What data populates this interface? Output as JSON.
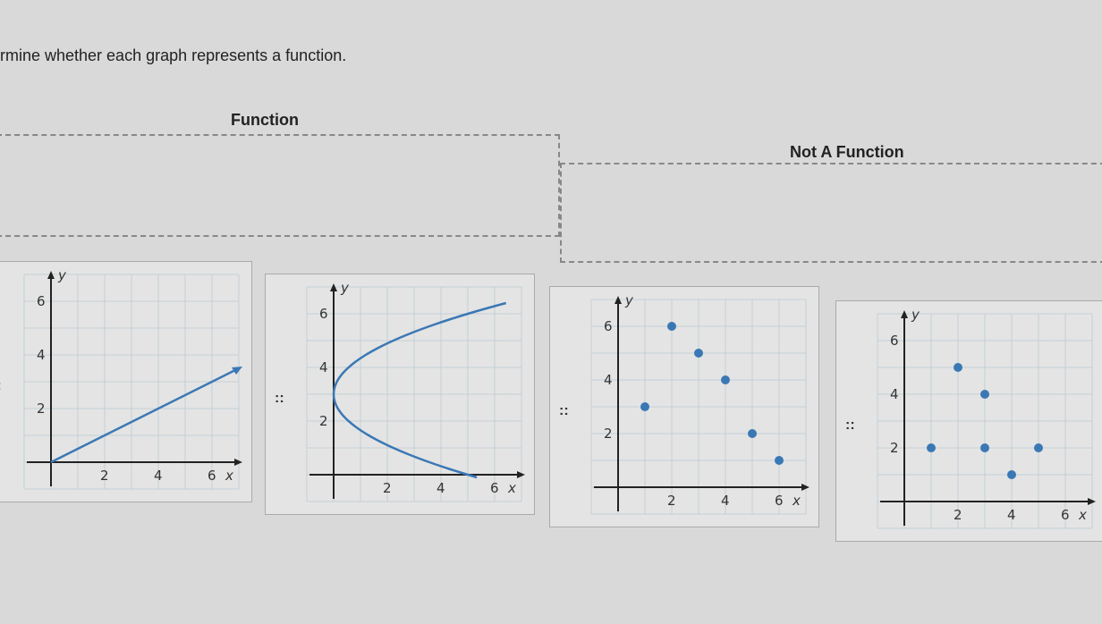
{
  "instructions": "rmine whether each graph represents a function.",
  "zones": [
    {
      "label": "Function"
    },
    {
      "label": "Not A Function"
    }
  ],
  "handle_icon": "::",
  "colors": {
    "series": "#3a78b5",
    "grid": "#c4cfd6",
    "axis": "#222"
  },
  "chart_data": [
    {
      "type": "line",
      "xlabel": "x",
      "ylabel": "y",
      "xticks": [
        "2",
        "4",
        "6"
      ],
      "yticks": [
        "2",
        "4",
        "6"
      ],
      "xlim": [
        -1,
        7
      ],
      "ylim": [
        -1,
        7
      ],
      "grid": true,
      "line": [
        [
          0,
          0
        ],
        [
          7,
          3.5
        ]
      ]
    },
    {
      "type": "line",
      "xlabel": "x",
      "ylabel": "y",
      "xticks": [
        "2",
        "4",
        "6"
      ],
      "yticks": [
        "2",
        "4",
        "6"
      ],
      "xlim": [
        -1,
        7
      ],
      "ylim": [
        -1,
        7
      ],
      "grid": true,
      "relation": "sideways parabola, vertex (0,3), opening right"
    },
    {
      "type": "scatter",
      "xlabel": "x",
      "ylabel": "y",
      "xticks": [
        "2",
        "4",
        "6"
      ],
      "yticks": [
        "2",
        "4",
        "6"
      ],
      "xlim": [
        -1,
        7
      ],
      "ylim": [
        -1,
        7
      ],
      "grid": true,
      "points": [
        [
          1,
          3
        ],
        [
          2,
          6
        ],
        [
          3,
          5
        ],
        [
          4,
          4
        ],
        [
          5,
          2
        ],
        [
          6,
          1
        ]
      ]
    },
    {
      "type": "scatter",
      "xlabel": "x",
      "ylabel": "y",
      "xticks": [
        "2",
        "4",
        "6"
      ],
      "yticks": [
        "2",
        "4",
        "6"
      ],
      "xlim": [
        -1,
        7
      ],
      "ylim": [
        -1,
        7
      ],
      "grid": true,
      "points": [
        [
          1,
          2
        ],
        [
          2,
          5
        ],
        [
          3,
          4
        ],
        [
          3,
          2
        ],
        [
          4,
          1
        ],
        [
          5,
          2
        ]
      ]
    }
  ]
}
